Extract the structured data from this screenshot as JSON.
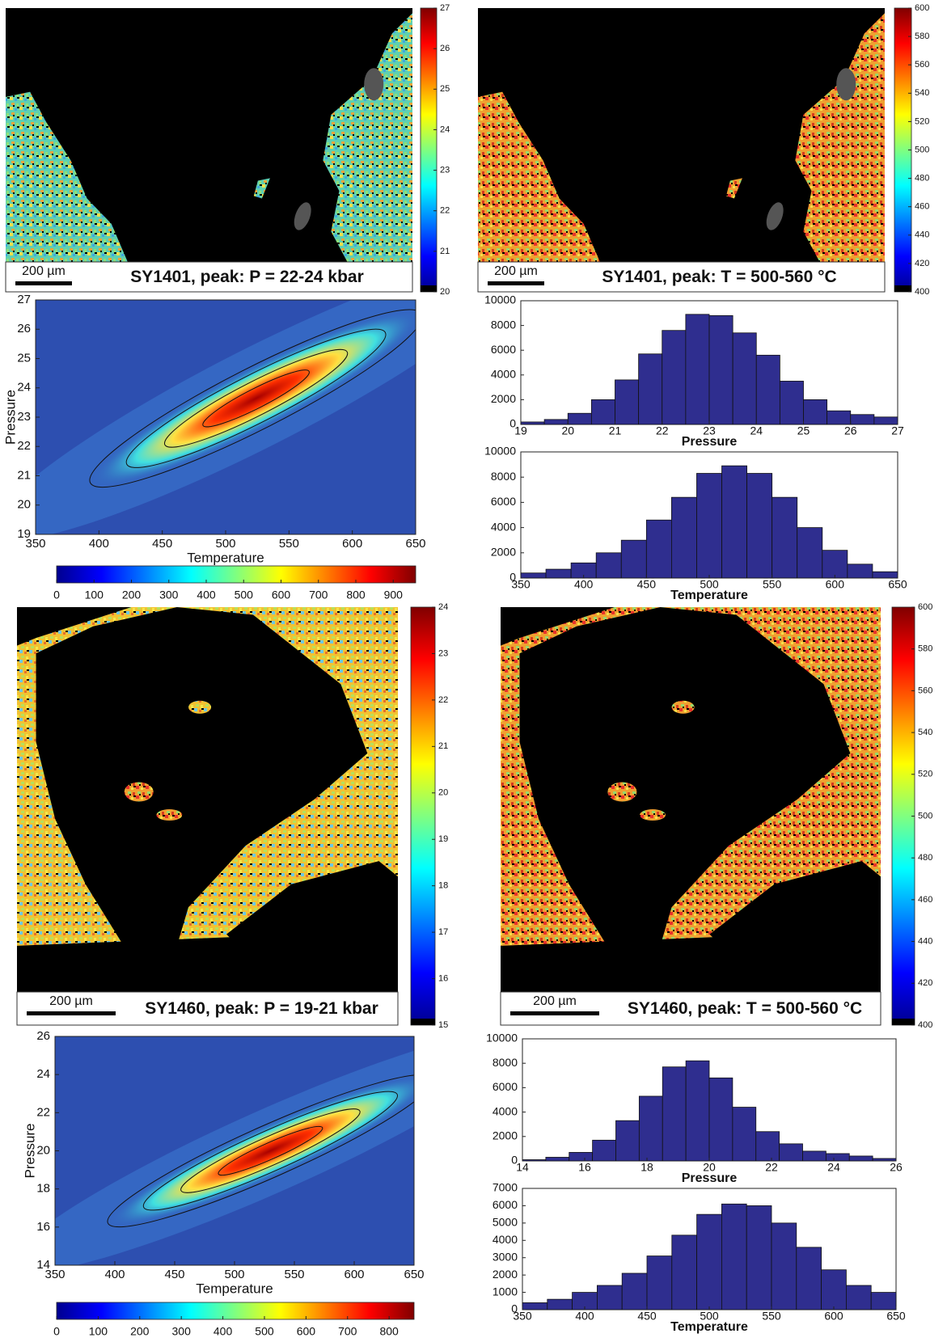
{
  "chart_data": [
    {
      "type": "map",
      "caption": "SY1401, peak: P = 22-24 kbar",
      "scale_bar": "200 µm",
      "colorbar": {
        "lim": [
          20,
          27
        ],
        "ticks": [
          20,
          21,
          22,
          23,
          24,
          25,
          26,
          27
        ]
      }
    },
    {
      "type": "map",
      "caption": "SY1401, peak: T = 500-560 °C",
      "scale_bar": "200 µm",
      "colorbar": {
        "lim": [
          400,
          600
        ],
        "ticks": [
          400,
          420,
          440,
          460,
          480,
          500,
          520,
          540,
          560,
          580,
          600
        ]
      }
    },
    {
      "type": "heatmap",
      "xlabel": "Temperature",
      "ylabel": "Pressure",
      "xlim": [
        350,
        650
      ],
      "xticks": [
        350,
        400,
        450,
        500,
        550,
        600,
        650
      ],
      "ylim": [
        19,
        27
      ],
      "yticks": [
        19,
        20,
        21,
        22,
        23,
        24,
        25,
        26,
        27
      ],
      "colorbar": {
        "lim": [
          0,
          960
        ],
        "ticks": [
          0,
          100,
          200,
          300,
          400,
          500,
          600,
          700,
          800,
          900
        ]
      }
    },
    {
      "type": "histogram",
      "xlabel": "Pressure",
      "color": "#2f2e8f",
      "bins": [
        19,
        19.5,
        20,
        20.5,
        21,
        21.5,
        22,
        22.5,
        23,
        23.5,
        24,
        24.5,
        25,
        25.5,
        26,
        26.5,
        27
      ],
      "values": [
        200,
        400,
        900,
        2000,
        3600,
        5700,
        7600,
        8900,
        8800,
        7400,
        5600,
        3500,
        2000,
        1100,
        800,
        600
      ],
      "xlim": [
        19,
        27
      ],
      "xticks": [
        19,
        20,
        21,
        22,
        23,
        24,
        25,
        26,
        27
      ],
      "ylim": [
        0,
        10000
      ],
      "yticks": [
        0,
        2000,
        4000,
        6000,
        8000,
        10000
      ]
    },
    {
      "type": "histogram",
      "xlabel": "Temperature",
      "color": "#2f2e8f",
      "bins": [
        350,
        370,
        390,
        410,
        430,
        450,
        470,
        490,
        510,
        530,
        550,
        570,
        590,
        610,
        630,
        650
      ],
      "values": [
        400,
        700,
        1200,
        2000,
        3000,
        4600,
        6400,
        8300,
        8900,
        8300,
        6400,
        4000,
        2200,
        1100,
        500
      ],
      "xlim": [
        350,
        650
      ],
      "xticks": [
        350,
        400,
        450,
        500,
        550,
        600,
        650
      ],
      "ylim": [
        0,
        10000
      ],
      "yticks": [
        0,
        2000,
        4000,
        6000,
        8000,
        10000
      ]
    },
    {
      "type": "map",
      "caption": "SY1460, peak: P = 19-21 kbar",
      "scale_bar": "200 µm",
      "colorbar": {
        "lim": [
          15,
          24
        ],
        "ticks": [
          15,
          16,
          17,
          18,
          19,
          20,
          21,
          22,
          23,
          24
        ]
      }
    },
    {
      "type": "map",
      "caption": "SY1460, peak: T = 500-560 °C",
      "scale_bar": "200 µm",
      "colorbar": {
        "lim": [
          400,
          600
        ],
        "ticks": [
          400,
          420,
          440,
          460,
          480,
          500,
          520,
          540,
          560,
          580,
          600
        ]
      }
    },
    {
      "type": "heatmap",
      "xlabel": "Temperature",
      "ylabel": "Pressure",
      "xlim": [
        350,
        650
      ],
      "xticks": [
        350,
        400,
        450,
        500,
        550,
        600,
        650
      ],
      "ylim": [
        14,
        26
      ],
      "yticks": [
        14,
        16,
        18,
        20,
        22,
        24,
        26
      ],
      "colorbar": {
        "lim": [
          0,
          860
        ],
        "ticks": [
          0,
          100,
          200,
          300,
          400,
          500,
          600,
          700,
          800
        ]
      }
    },
    {
      "type": "histogram",
      "xlabel": "Pressure",
      "color": "#2f2e8f",
      "bins": [
        14,
        14.75,
        15.5,
        16.25,
        17,
        17.75,
        18.5,
        19.25,
        20,
        20.75,
        21.5,
        22.25,
        23,
        23.75,
        24.5,
        25.25,
        26
      ],
      "values": [
        100,
        300,
        700,
        1700,
        3300,
        5300,
        7700,
        8200,
        6800,
        4400,
        2400,
        1400,
        800,
        600,
        400,
        200
      ],
      "xlim": [
        14,
        26
      ],
      "xticks": [
        14,
        16,
        18,
        20,
        22,
        24,
        26
      ],
      "ylim": [
        0,
        10000
      ],
      "yticks": [
        0,
        2000,
        4000,
        6000,
        8000,
        10000
      ]
    },
    {
      "type": "histogram",
      "xlabel": "Temperature",
      "color": "#2f2e8f",
      "bins": [
        350,
        370,
        390,
        410,
        430,
        450,
        470,
        490,
        510,
        530,
        550,
        570,
        590,
        610,
        630,
        650
      ],
      "values": [
        400,
        600,
        1000,
        1400,
        2100,
        3100,
        4300,
        5500,
        6100,
        6000,
        5000,
        3600,
        2300,
        1400,
        1000
      ],
      "xlim": [
        350,
        650
      ],
      "xticks": [
        350,
        400,
        450,
        500,
        550,
        600,
        650
      ],
      "ylim": [
        0,
        7000
      ],
      "yticks": [
        0,
        1000,
        2000,
        3000,
        4000,
        5000,
        6000,
        7000
      ]
    }
  ]
}
